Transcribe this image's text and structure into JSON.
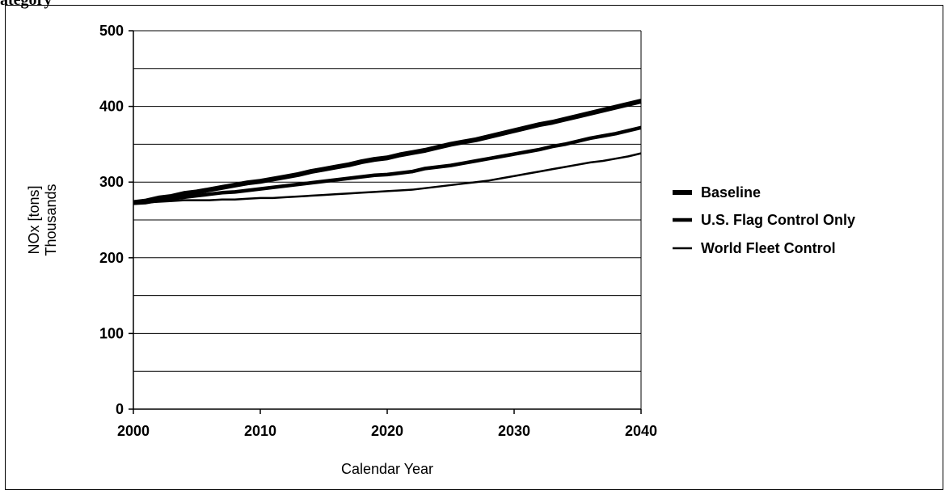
{
  "caption": "ategory",
  "chart_data": {
    "type": "line",
    "xlabel": "Calendar Year",
    "ylabel": [
      "NOx [tons]",
      "Thousands"
    ],
    "xlim": [
      2000,
      2040
    ],
    "ylim": [
      0,
      500
    ],
    "xticks": [
      "2000",
      "2010",
      "2020",
      "2030",
      "2040"
    ],
    "yticks": [
      "0",
      "100",
      "200",
      "300",
      "400",
      "500"
    ],
    "grid": "horizontal every 50",
    "legend_position": "right",
    "series": [
      {
        "name": "Baseline",
        "stroke": "#000000",
        "weight": "thick",
        "x": [
          2000,
          2001,
          2002,
          2003,
          2004,
          2005,
          2006,
          2007,
          2008,
          2009,
          2010,
          2011,
          2012,
          2013,
          2014,
          2015,
          2016,
          2017,
          2018,
          2019,
          2020,
          2021,
          2022,
          2023,
          2024,
          2025,
          2026,
          2027,
          2028,
          2029,
          2030,
          2031,
          2032,
          2033,
          2034,
          2035,
          2036,
          2037,
          2038,
          2039,
          2040
        ],
        "values": [
          273,
          275,
          279,
          281,
          285,
          287,
          290,
          293,
          296,
          299,
          301,
          304,
          307,
          310,
          314,
          317,
          320,
          323,
          327,
          330,
          332,
          336,
          339,
          342,
          346,
          350,
          353,
          356,
          360,
          364,
          368,
          372,
          376,
          379,
          383,
          387,
          391,
          395,
          399,
          403,
          407
        ]
      },
      {
        "name": "U.S. Flag Control Only",
        "stroke": "#000000",
        "weight": "medium",
        "x": [
          2000,
          2001,
          2002,
          2003,
          2004,
          2005,
          2006,
          2007,
          2008,
          2009,
          2010,
          2011,
          2012,
          2013,
          2014,
          2015,
          2016,
          2017,
          2018,
          2019,
          2020,
          2021,
          2022,
          2023,
          2024,
          2025,
          2026,
          2027,
          2028,
          2029,
          2030,
          2031,
          2032,
          2033,
          2034,
          2035,
          2036,
          2037,
          2038,
          2039,
          2040
        ],
        "values": [
          272,
          273,
          276,
          278,
          280,
          282,
          284,
          286,
          287,
          289,
          291,
          293,
          295,
          297,
          299,
          301,
          303,
          305,
          307,
          309,
          310,
          312,
          314,
          318,
          320,
          322,
          325,
          328,
          331,
          334,
          337,
          340,
          343,
          347,
          350,
          354,
          358,
          361,
          364,
          368,
          372
        ]
      },
      {
        "name": "World Fleet Control",
        "stroke": "#000000",
        "weight": "thin",
        "x": [
          2000,
          2001,
          2002,
          2003,
          2004,
          2005,
          2006,
          2007,
          2008,
          2009,
          2010,
          2011,
          2012,
          2013,
          2014,
          2015,
          2016,
          2017,
          2018,
          2019,
          2020,
          2021,
          2022,
          2023,
          2024,
          2025,
          2026,
          2027,
          2028,
          2029,
          2030,
          2031,
          2032,
          2033,
          2034,
          2035,
          2036,
          2037,
          2038,
          2039,
          2040
        ],
        "values": [
          272,
          273,
          274,
          275,
          276,
          276,
          276,
          277,
          277,
          278,
          279,
          279,
          280,
          281,
          282,
          283,
          284,
          285,
          286,
          287,
          288,
          289,
          290,
          292,
          294,
          296,
          298,
          300,
          302,
          305,
          308,
          311,
          314,
          317,
          320,
          323,
          326,
          328,
          331,
          334,
          338
        ]
      }
    ]
  }
}
